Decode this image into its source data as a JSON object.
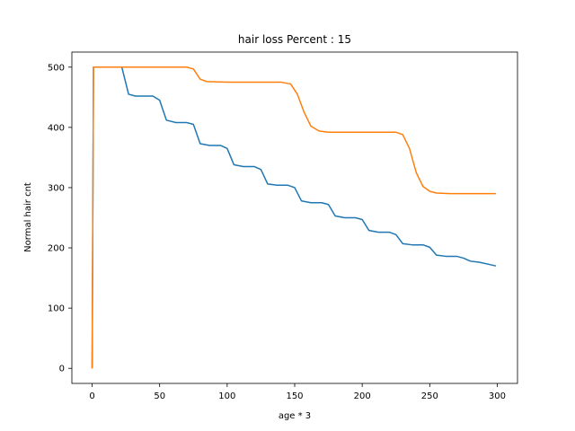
{
  "chart_data": {
    "type": "line",
    "title": "hair loss Percent : 15",
    "xlabel": "age * 3",
    "ylabel": "Normal hair cnt",
    "xlim": [
      -15,
      315
    ],
    "ylim": [
      -25,
      525
    ],
    "xticks": [
      0,
      50,
      100,
      150,
      200,
      250,
      300
    ],
    "yticks": [
      0,
      100,
      200,
      300,
      400,
      500
    ],
    "grid": false,
    "legend": "none",
    "series": [
      {
        "color": "#1f77b4",
        "x": [
          0,
          1,
          3,
          18,
          22,
          27,
          32,
          37,
          45,
          50,
          55,
          62,
          70,
          75,
          80,
          87,
          95,
          100,
          105,
          112,
          120,
          125,
          130,
          137,
          145,
          150,
          155,
          162,
          170,
          175,
          180,
          187,
          195,
          200,
          205,
          212,
          220,
          225,
          230,
          237,
          245,
          250,
          255,
          262,
          270,
          275,
          280,
          287,
          295,
          299
        ],
        "y": [
          0,
          500,
          500,
          500,
          500,
          455,
          452,
          452,
          452,
          445,
          412,
          408,
          408,
          405,
          373,
          370,
          370,
          365,
          338,
          335,
          335,
          330,
          306,
          304,
          304,
          300,
          278,
          275,
          275,
          272,
          253,
          250,
          250,
          247,
          229,
          226,
          226,
          222,
          207,
          205,
          205,
          201,
          188,
          186,
          186,
          183,
          178,
          176,
          172,
          170
        ]
      },
      {
        "color": "#ff7f0e",
        "x": [
          0,
          1,
          3,
          30,
          70,
          75,
          80,
          85,
          100,
          140,
          147,
          152,
          157,
          162,
          168,
          175,
          200,
          225,
          230,
          235,
          240,
          245,
          250,
          255,
          265,
          280,
          299
        ],
        "y": [
          0,
          500,
          500,
          500,
          500,
          497,
          480,
          476,
          475,
          475,
          472,
          455,
          425,
          402,
          394,
          392,
          392,
          392,
          388,
          365,
          325,
          302,
          294,
          291,
          290,
          290,
          290
        ]
      }
    ]
  }
}
